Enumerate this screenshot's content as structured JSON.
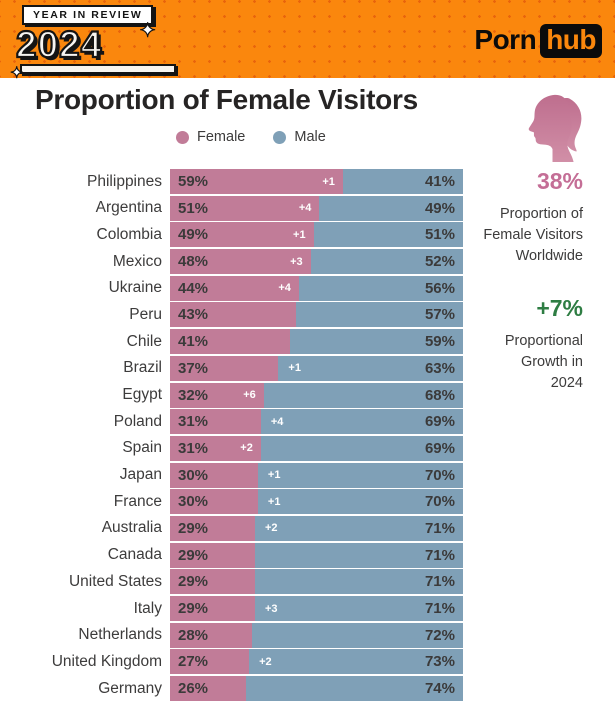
{
  "header": {
    "badge_label": "YEAR IN REVIEW",
    "badge_year": "2024",
    "sparkle_glyph": "✦",
    "logo_part1": "Porn",
    "logo_part2": "hub"
  },
  "title": "Proportion of Female Visitors",
  "legend": [
    {
      "label": "Female",
      "color": "#C17C98"
    },
    {
      "label": "Male",
      "color": "#7FA0B7"
    }
  ],
  "icons": {
    "woman_silhouette": "female-profile-icon"
  },
  "sidebar": {
    "stat1_value": "38%",
    "stat1_label": "Proportion of\nFemale Visitors\nWorldwide",
    "stat2_value": "+7%",
    "stat2_label": "Proportional\nGrowth in\n2024"
  },
  "colors": {
    "header_orange": "#FA870D",
    "dot_pattern": "#D8460A",
    "female_pink": "#C17C98",
    "male_blue": "#7FA0B7",
    "accent_pink": "#C46E96",
    "accent_green": "#2E7D43",
    "text_dark": "#3c3b3b"
  },
  "chart_data": {
    "type": "bar",
    "stacked": true,
    "orientation": "horizontal",
    "unit": "%",
    "title": "Proportion of Female Visitors",
    "series_names": [
      "Female",
      "Male"
    ],
    "xlim": [
      0,
      100
    ],
    "grid": false,
    "legend_position": "top",
    "rows": [
      {
        "country": "Philippines",
        "female": 59,
        "male": 41,
        "growth": "+1",
        "growth_side": "female"
      },
      {
        "country": "Argentina",
        "female": 51,
        "male": 49,
        "growth": "+4",
        "growth_side": "female"
      },
      {
        "country": "Colombia",
        "female": 49,
        "male": 51,
        "growth": "+1",
        "growth_side": "female"
      },
      {
        "country": "Mexico",
        "female": 48,
        "male": 52,
        "growth": "+3",
        "growth_side": "female"
      },
      {
        "country": "Ukraine",
        "female": 44,
        "male": 56,
        "growth": "+4",
        "growth_side": "female"
      },
      {
        "country": "Peru",
        "female": 43,
        "male": 57,
        "growth": null,
        "growth_side": null
      },
      {
        "country": "Chile",
        "female": 41,
        "male": 59,
        "growth": null,
        "growth_side": null
      },
      {
        "country": "Brazil",
        "female": 37,
        "male": 63,
        "growth": "+1",
        "growth_side": "male"
      },
      {
        "country": "Egypt",
        "female": 32,
        "male": 68,
        "growth": "+6",
        "growth_side": "female"
      },
      {
        "country": "Poland",
        "female": 31,
        "male": 69,
        "growth": "+4",
        "growth_side": "male"
      },
      {
        "country": "Spain",
        "female": 31,
        "male": 69,
        "growth": "+2",
        "growth_side": "female"
      },
      {
        "country": "Japan",
        "female": 30,
        "male": 70,
        "growth": "+1",
        "growth_side": "male"
      },
      {
        "country": "France",
        "female": 30,
        "male": 70,
        "growth": "+1",
        "growth_side": "male"
      },
      {
        "country": "Australia",
        "female": 29,
        "male": 71,
        "growth": "+2",
        "growth_side": "male"
      },
      {
        "country": "Canada",
        "female": 29,
        "male": 71,
        "growth": null,
        "growth_side": null
      },
      {
        "country": "United States",
        "female": 29,
        "male": 71,
        "growth": null,
        "growth_side": null
      },
      {
        "country": "Italy",
        "female": 29,
        "male": 71,
        "growth": "+3",
        "growth_side": "male"
      },
      {
        "country": "Netherlands",
        "female": 28,
        "male": 72,
        "growth": null,
        "growth_side": null
      },
      {
        "country": "United Kingdom",
        "female": 27,
        "male": 73,
        "growth": "+2",
        "growth_side": "male"
      },
      {
        "country": "Germany",
        "female": 26,
        "male": 74,
        "growth": null,
        "growth_side": null
      }
    ]
  }
}
